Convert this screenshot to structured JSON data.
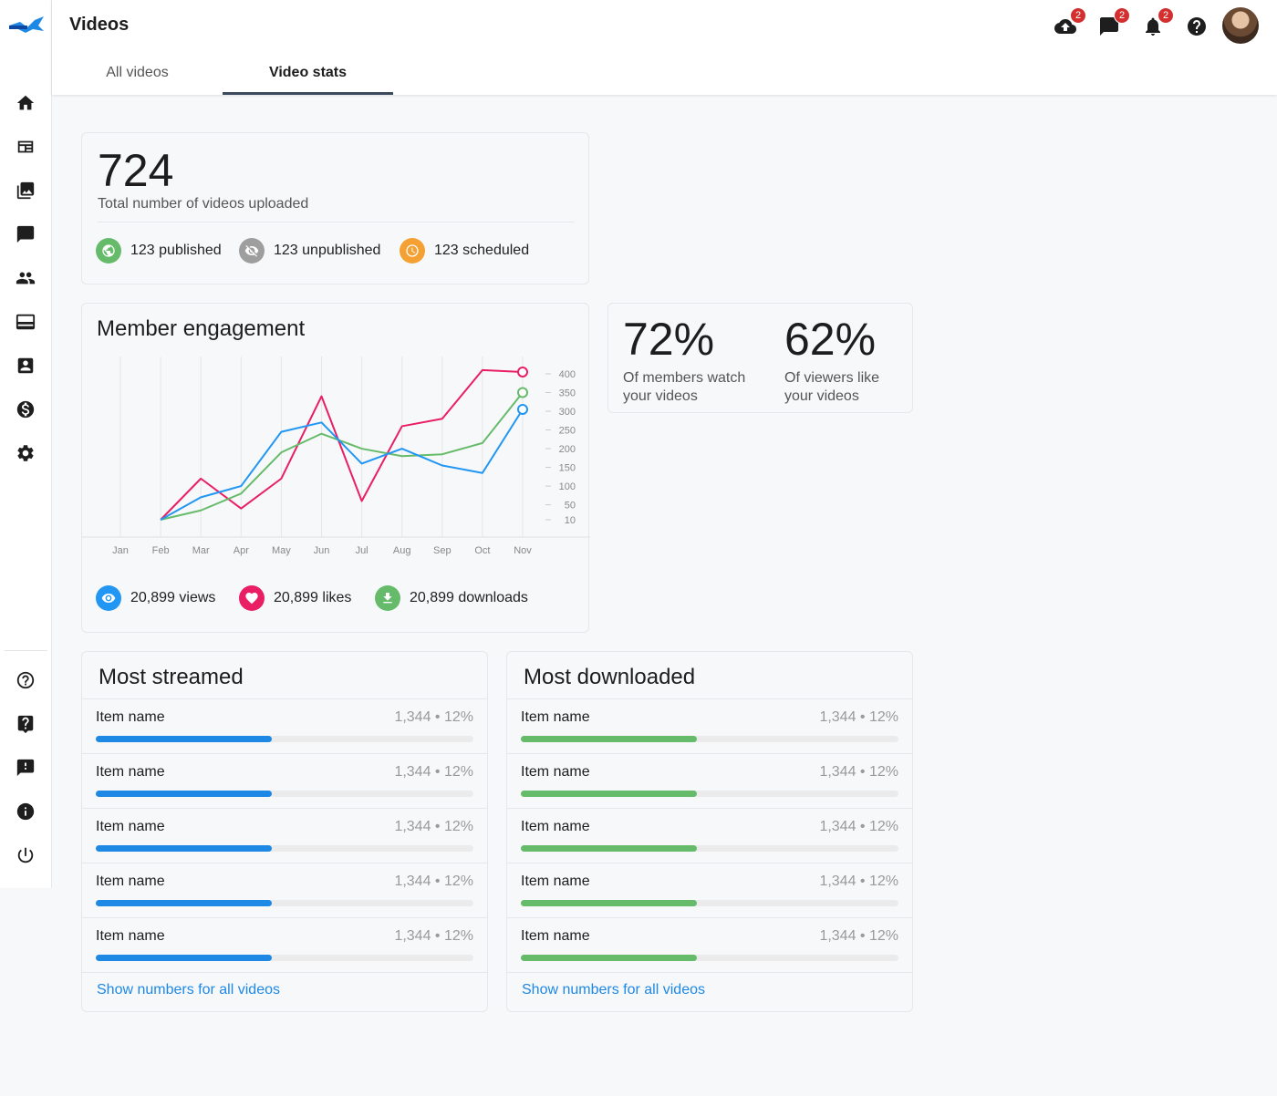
{
  "header": {
    "title": "Videos",
    "tabs": [
      {
        "label": "All videos"
      },
      {
        "label": "Video stats"
      }
    ],
    "badges": {
      "upload": "2",
      "messages": "2",
      "notifications": "2"
    }
  },
  "summary": {
    "total": "724",
    "total_label": "Total number of videos uploaded",
    "published": "123 published",
    "unpublished": "123 unpublished",
    "scheduled": "123 scheduled"
  },
  "engagement": {
    "title": "Member engagement",
    "views": "20,899 views",
    "likes": "20,899 likes",
    "downloads": "20,899 downloads"
  },
  "percentages": {
    "watch_value": "72%",
    "watch_label_1": "Of members watch",
    "watch_label_2": "your videos",
    "like_value": "62%",
    "like_label_1": "Of viewers like",
    "like_label_2": "your videos"
  },
  "chart_data": {
    "type": "line",
    "title": "Member engagement",
    "categories": [
      "Jan",
      "Feb",
      "Mar",
      "Apr",
      "May",
      "Jun",
      "Jul",
      "Aug",
      "Sep",
      "Oct",
      "Nov"
    ],
    "y_ticks": [
      10,
      50,
      100,
      150,
      200,
      250,
      300,
      350,
      400
    ],
    "series": [
      {
        "color": "#e91e63",
        "values": [
          null,
          0,
          120,
          40,
          120,
          340,
          60,
          260,
          280,
          410,
          405
        ]
      },
      {
        "color": "#66bb6a",
        "values": [
          null,
          0,
          35,
          80,
          190,
          240,
          200,
          180,
          185,
          215,
          350
        ]
      },
      {
        "color": "#2196f3",
        "values": [
          null,
          0,
          70,
          100,
          245,
          270,
          160,
          200,
          155,
          135,
          305
        ]
      }
    ],
    "grid": "vertical",
    "legend": "none"
  },
  "streamed": {
    "title": "Most streamed",
    "link": "Show numbers for all videos",
    "color": "#1e88e5",
    "items": [
      {
        "name": "Item name",
        "stat": "1,344 • 12%",
        "fraction": 0.466
      },
      {
        "name": "Item name",
        "stat": "1,344 • 12%",
        "fraction": 0.466
      },
      {
        "name": "Item name",
        "stat": "1,344 • 12%",
        "fraction": 0.466
      },
      {
        "name": "Item name",
        "stat": "1,344 • 12%",
        "fraction": 0.466
      },
      {
        "name": "Item name",
        "stat": "1,344 • 12%",
        "fraction": 0.466
      }
    ]
  },
  "downloaded": {
    "title": "Most downloaded",
    "link": "Show numbers for all videos",
    "color": "#66bb6a",
    "items": [
      {
        "name": "Item name",
        "stat": "1,344 • 12%",
        "fraction": 0.466
      },
      {
        "name": "Item name",
        "stat": "1,344 • 12%",
        "fraction": 0.466
      },
      {
        "name": "Item name",
        "stat": "1,344 • 12%",
        "fraction": 0.466
      },
      {
        "name": "Item name",
        "stat": "1,344 • 12%",
        "fraction": 0.466
      },
      {
        "name": "Item name",
        "stat": "1,344 • 12%",
        "fraction": 0.466
      }
    ]
  }
}
